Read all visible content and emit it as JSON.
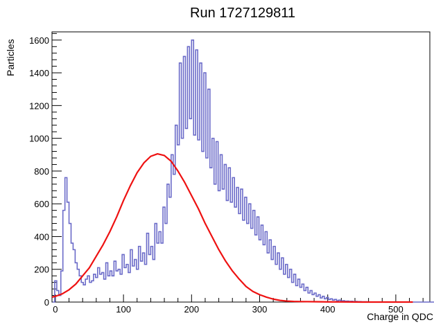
{
  "chart_data": {
    "type": "line",
    "title": "Run 1727129811",
    "xlabel": "Charge in QDC",
    "ylabel": "Particles",
    "xlim": [
      -5,
      550
    ],
    "ylim": [
      0,
      1650
    ],
    "x_ticks": [
      0,
      100,
      200,
      300,
      400,
      500
    ],
    "y_ticks": [
      0,
      200,
      400,
      600,
      800,
      1000,
      1200,
      1400,
      1600
    ],
    "grid": false,
    "legend": "none",
    "series": [
      {
        "style": "histogram",
        "color": "#6a6ac8",
        "bin_width": 3,
        "x_start": -4,
        "values": [
          0,
          130,
          70,
          40,
          190,
          560,
          760,
          610,
          480,
          360,
          320,
          240,
          200,
          160,
          120,
          105,
          140,
          160,
          120,
          130,
          170,
          150,
          210,
          170,
          180,
          140,
          240,
          160,
          190,
          160,
          250,
          190,
          200,
          170,
          290,
          210,
          230,
          180,
          320,
          220,
          260,
          200,
          340,
          250,
          300,
          230,
          420,
          290,
          340,
          260,
          480,
          360,
          430,
          360,
          580,
          480,
          720,
          640,
          900,
          780,
          1080,
          960,
          1460,
          1000,
          1500,
          1060,
          1560,
          1120,
          1600,
          1020,
          1540,
          990,
          1460,
          920,
          1400,
          880,
          1300,
          820,
          1000,
          720,
          980,
          680,
          900,
          690,
          840,
          620,
          820,
          610,
          760,
          580,
          700,
          540,
          690,
          500,
          640,
          480,
          600,
          450,
          560,
          410,
          520,
          380,
          470,
          350,
          430,
          300,
          380,
          260,
          340,
          230,
          300,
          200,
          270,
          170,
          230,
          150,
          200,
          120,
          170,
          100,
          140,
          90,
          110,
          70,
          90,
          55,
          70,
          45,
          55,
          35,
          45,
          25,
          35,
          20,
          28,
          16,
          20,
          12,
          16,
          8,
          12,
          6,
          8,
          5,
          6,
          4,
          5,
          3,
          4,
          3,
          3,
          2,
          2,
          2,
          1,
          1,
          1,
          1,
          1,
          0,
          1,
          0,
          1,
          0,
          0,
          0,
          0,
          0,
          0,
          0,
          0,
          0,
          0,
          0,
          0,
          0,
          0,
          0,
          0,
          0,
          0,
          0,
          0,
          0,
          0,
          0,
          0,
          0,
          0
        ]
      },
      {
        "style": "fit-curve",
        "color": "#ee1111",
        "x": [
          -5,
          0,
          10,
          20,
          30,
          40,
          50,
          60,
          70,
          80,
          90,
          100,
          110,
          120,
          130,
          140,
          150,
          160,
          170,
          180,
          190,
          200,
          210,
          220,
          230,
          240,
          250,
          260,
          270,
          280,
          290,
          300,
          310,
          320,
          330,
          340,
          350,
          360,
          380,
          400,
          420,
          450,
          500,
          525
        ],
        "values": [
          30,
          35,
          50,
          75,
          110,
          160,
          210,
          280,
          350,
          430,
          520,
          620,
          710,
          790,
          850,
          890,
          905,
          895,
          860,
          800,
          730,
          650,
          570,
          480,
          400,
          320,
          250,
          190,
          140,
          95,
          65,
          45,
          30,
          18,
          10,
          6,
          4,
          3,
          2,
          1,
          1,
          0,
          0,
          0
        ]
      }
    ]
  }
}
